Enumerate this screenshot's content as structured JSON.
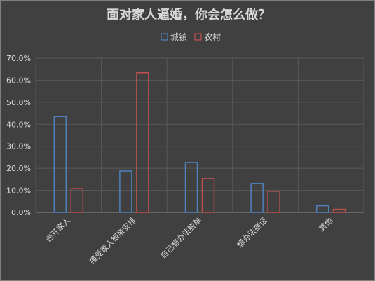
{
  "chart_data": {
    "type": "bar",
    "title": "面对家人逼婚，你会怎么做？",
    "categories": [
      "逃开家人",
      "接受家人相亲安排",
      "自己想办法脱单",
      "想办法搪证",
      "其他"
    ],
    "series": [
      {
        "name": "城镇",
        "values": [
          43.5,
          18.8,
          22.6,
          13.1,
          3.0
        ],
        "color": "#4f81bd"
      },
      {
        "name": "农村",
        "values": [
          10.8,
          63.4,
          15.3,
          9.6,
          1.4
        ],
        "color": "#c0504d"
      }
    ],
    "ylim": [
      0,
      70
    ],
    "yticks": [
      "0.0%",
      "10.0%",
      "20.0%",
      "30.0%",
      "40.0%",
      "50.0%",
      "60.0%",
      "70.0%"
    ],
    "legend_position": "top",
    "grid": true,
    "xlabel": "",
    "ylabel": ""
  }
}
